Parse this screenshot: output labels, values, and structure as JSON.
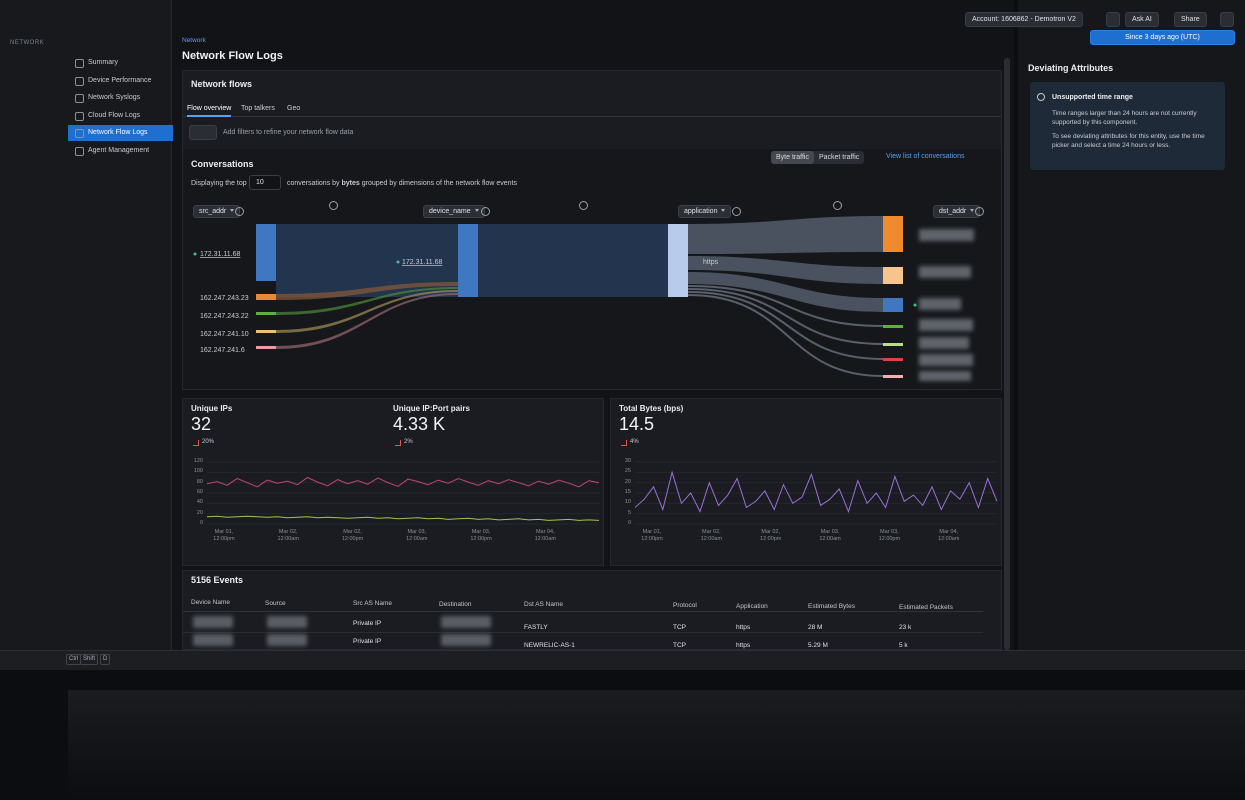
{
  "topbar": {
    "account": "Account: 1606862 - Demotron V2",
    "ask_ai": "Ask AI",
    "share": "Share",
    "time_range": "Since 3 days ago (UTC)"
  },
  "sidebar": {
    "heading": "NETWORK",
    "items": [
      "Summary",
      "Device Performance",
      "Network Syslogs",
      "Cloud Flow Logs",
      "Network Flow Logs",
      "Agent Management"
    ],
    "active": 4
  },
  "breadcrumb": "Network",
  "title": "Network Flow Logs",
  "flows": {
    "title": "Network flows",
    "tabs": [
      "Flow overview",
      "Top talkers",
      "Geo"
    ],
    "active_tab": 0,
    "filter_placeholder": "Add filters to refine your network flow data"
  },
  "conversations": {
    "title": "Conversations",
    "toggle": [
      "Byte traffic",
      "Packet traffic"
    ],
    "link": "View list of conversations",
    "text_before": "Displaying the top",
    "top_n": "10",
    "text_mid": "conversations by",
    "text_bold": "bytes",
    "text_after": "grouped by dimensions of the network flow events",
    "dimensions": [
      "src_addr",
      "device_name",
      "application",
      "dst_addr"
    ],
    "sources": [
      "172.31.11.68",
      "162.247.243.23",
      "162.247.243.22",
      "162.247.241.10",
      "162.247.241.6"
    ],
    "device": "172.31.11.68",
    "application": "https"
  },
  "metrics": [
    {
      "title": "Unique IPs",
      "value": "32",
      "change": "20%"
    },
    {
      "title": "Unique IP:Port pairs",
      "value": "4.33 K",
      "change": "2%"
    },
    {
      "title": "Total Bytes (bps)",
      "value": "14.5",
      "change": "4%"
    }
  ],
  "charts": [
    {
      "ylim": [
        0,
        120
      ],
      "yticks": [
        0,
        20,
        40,
        60,
        80,
        100,
        120
      ],
      "xlabels": [
        "Mar 01, 12:00pm",
        "Mar 02, 12:00am",
        "Mar 02, 12:00pm",
        "Mar 03, 12:00am",
        "Mar 03, 12:00pm",
        "Mar 04, 12:00am"
      ],
      "series": [
        {
          "color": "#c2437a",
          "values": [
            78,
            82,
            75,
            88,
            80,
            72,
            85,
            79,
            83,
            76,
            90,
            81,
            74,
            86,
            78,
            84,
            77,
            89,
            80,
            73,
            87,
            82,
            76,
            85,
            79,
            88,
            81,
            75,
            84,
            78,
            86,
            80,
            74,
            83,
            77,
            85,
            79,
            72,
            84,
            80
          ]
        },
        {
          "color": "#a6c44a",
          "values": [
            14,
            15,
            13,
            14,
            15,
            14,
            13,
            14,
            12,
            13,
            14,
            12,
            13,
            12,
            11,
            12,
            13,
            11,
            12,
            10,
            11,
            12,
            10,
            11,
            9,
            10,
            11,
            9,
            10,
            8,
            9,
            10,
            8,
            9,
            7,
            8,
            9,
            7,
            8,
            7
          ]
        }
      ]
    },
    {
      "ylim": [
        0,
        30
      ],
      "yticks": [
        0,
        5,
        10,
        15,
        20,
        25,
        30
      ],
      "xlabels": [
        "Mar 01, 12:00pm",
        "Mar 02, 12:00am",
        "Mar 02, 12:00pm",
        "Mar 03, 12:00am",
        "Mar 03, 12:00pm",
        "Mar 04, 12:00am"
      ],
      "series": [
        {
          "color": "#9b6fd6",
          "values": [
            8,
            12,
            18,
            7,
            25,
            10,
            15,
            6,
            20,
            9,
            14,
            22,
            8,
            11,
            16,
            7,
            19,
            10,
            13,
            24,
            9,
            12,
            17,
            6,
            21,
            10,
            15,
            8,
            23,
            11,
            14,
            9,
            18,
            7,
            16,
            12,
            20,
            8,
            22,
            11
          ]
        }
      ]
    }
  ],
  "events": {
    "title": "5156 Events",
    "columns": [
      "Device Name",
      "Source",
      "Src AS Name",
      "Destination",
      "Dst AS Name",
      "Protocol",
      "Application",
      "Estimated Bytes",
      "Estimated Packets"
    ],
    "rows": [
      {
        "src_as": "Private IP",
        "dst_as": "FASTLY",
        "protocol": "TCP",
        "application": "https",
        "bytes": "28 M",
        "packets": "23 k"
      },
      {
        "src_as": "Private IP",
        "dst_as": "NEWRELIC-AS-1",
        "protocol": "TCP",
        "application": "https",
        "bytes": "5.29 M",
        "packets": "5 k"
      }
    ]
  },
  "deviating": {
    "title": "Deviating Attributes",
    "notice_title": "Unsupported time range",
    "notice_text": [
      "Time ranges larger than 24 hours are not currently supported by this component.",
      "To see deviating attributes for this entity, use the time picker and select a time 24 hours or less."
    ]
  },
  "shortcuts": [
    "Ctrl",
    "Shift",
    "D"
  ]
}
